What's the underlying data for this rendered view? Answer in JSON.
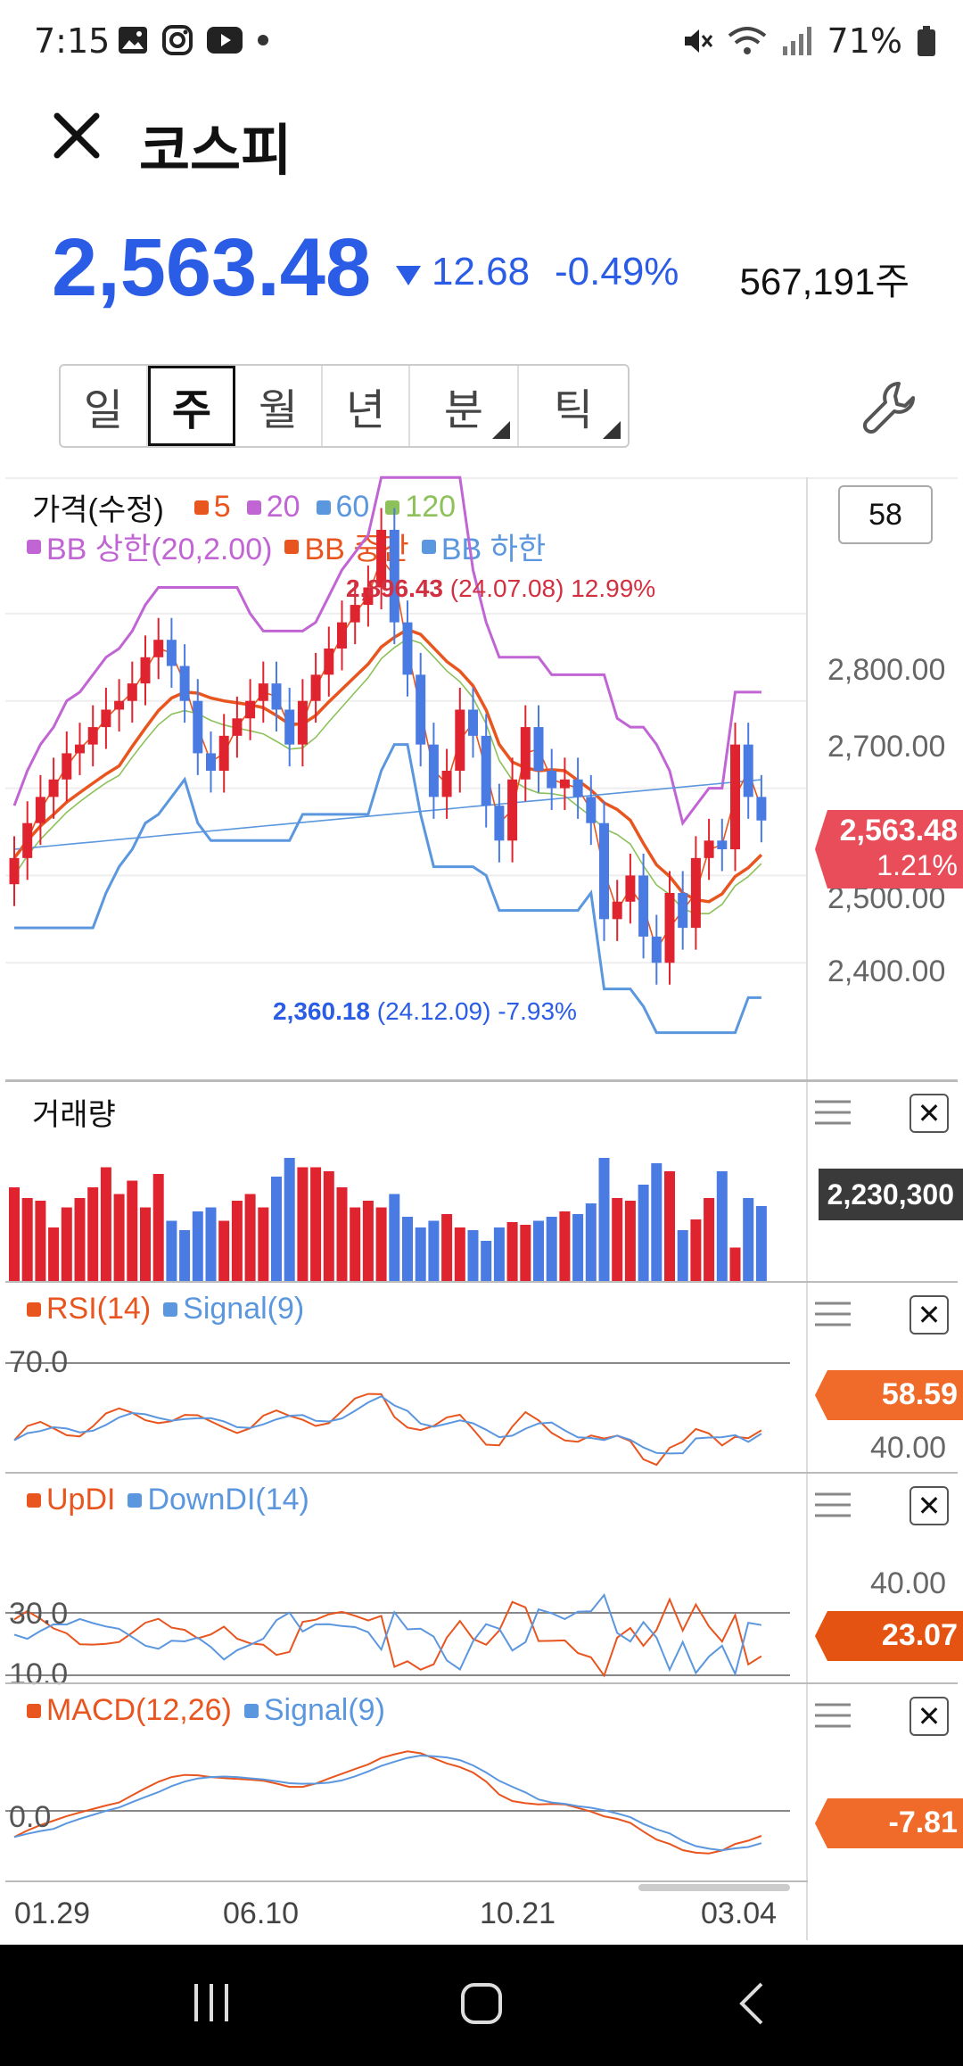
{
  "status_bar": {
    "time": "7:15",
    "battery": "71%",
    "icons": [
      "gallery-icon",
      "instagram-icon",
      "youtube-icon",
      "dot-icon",
      "mute-icon",
      "wifi-icon",
      "signal-icon",
      "battery-icon"
    ]
  },
  "header": {
    "title": "코스피"
  },
  "quote": {
    "price": "2,563.48",
    "change": "12.68",
    "change_pct": "-0.49%",
    "volume": "567,191주",
    "direction": "down"
  },
  "period_tabs": [
    {
      "label": "일",
      "active": false,
      "has_menu": false
    },
    {
      "label": "주",
      "active": true,
      "has_menu": false
    },
    {
      "label": "월",
      "active": false,
      "has_menu": false
    },
    {
      "label": "년",
      "active": false,
      "has_menu": false
    },
    {
      "label": "분",
      "active": false,
      "has_menu": true
    },
    {
      "label": "틱",
      "active": false,
      "has_menu": true
    }
  ],
  "price_panel": {
    "title": "가격(수정)",
    "ma_legend": [
      {
        "label": "5",
        "color": "#e8551f"
      },
      {
        "label": "20",
        "color": "#c164d4"
      },
      {
        "label": "60",
        "color": "#5b97de"
      },
      {
        "label": "120",
        "color": "#8dc15a"
      }
    ],
    "bb_legend": [
      {
        "label": "BB 상한(20,2.00)",
        "color": "#c164d4"
      },
      {
        "label": "BB 중간",
        "color": "#e8551f"
      },
      {
        "label": "BB 하한",
        "color": "#5b97de"
      }
    ],
    "count_box": "58",
    "y_ticks": [
      "2,800.00",
      "2,700.00",
      "2,500.00",
      "2,400.00"
    ],
    "high_label": {
      "value": "2,896.43",
      "detail": "(24.07.08) 12.99%"
    },
    "low_label": {
      "value": "2,360.18",
      "detail": "(24.12.09) -7.93%"
    },
    "current_badge": {
      "price": "2,563.48",
      "pct": "1.21%"
    }
  },
  "volume_panel": {
    "title": "거래량",
    "badge": "2,230,300"
  },
  "rsi_panel": {
    "legend": [
      {
        "label": "RSI(14)",
        "color": "#e8551f"
      },
      {
        "label": "Signal(9)",
        "color": "#5b97de"
      }
    ],
    "ref_line": "70.0",
    "axis_label": "40.00",
    "badge": "58.59"
  },
  "dmi_panel": {
    "legend": [
      {
        "label": "UpDI",
        "color": "#e8551f"
      },
      {
        "label": "DownDI(14)",
        "color": "#5b97de"
      }
    ],
    "ref_lines": [
      "30.0",
      "10.0"
    ],
    "axis_label": "40.00",
    "badge": "23.07"
  },
  "macd_panel": {
    "legend": [
      {
        "label": "MACD(12,26)",
        "color": "#e8551f"
      },
      {
        "label": "Signal(9)",
        "color": "#5b97de"
      }
    ],
    "ref_line": "0.0",
    "badge": "-7.81"
  },
  "x_axis": [
    "01.29",
    "06.10",
    "10.21",
    "03.04"
  ],
  "colors": {
    "up": "#e0242f",
    "down": "#4a7be2",
    "accent": "#2b5ce5"
  }
}
